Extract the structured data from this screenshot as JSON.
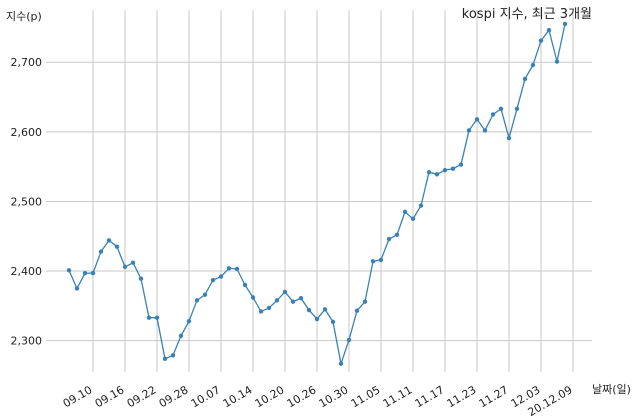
{
  "chart_data": {
    "type": "line",
    "title": "kospi 지수, 최근 3개월",
    "ylabel": "지수(p)",
    "xlabel": "날짜(일)",
    "ylim": [
      2255,
      2775
    ],
    "yticks": [
      2300,
      2400,
      2500,
      2600,
      2700
    ],
    "ytick_labels": [
      "2,300",
      "2,400",
      "2,500",
      "2,600",
      "2,700"
    ],
    "xtick_labels": [
      "09.10",
      "09.16",
      "09.22",
      "09.28",
      "10.07",
      "10.14",
      "10.20",
      "10.26",
      "10.30",
      "11.05",
      "11.11",
      "11.17",
      "11.23",
      "11.27",
      "12.03",
      "20.12.09"
    ],
    "xtick_index": [
      3,
      7,
      11,
      15,
      19,
      23,
      27,
      31,
      35,
      39,
      43,
      47,
      51,
      55,
      59,
      63
    ],
    "grid": true,
    "color": "#3a82b5",
    "series": [
      {
        "values": [
          2401,
          2375,
          2397,
          2397,
          2428,
          2444,
          2435,
          2406,
          2412,
          2389,
          2333,
          2333,
          2274,
          2279,
          2307,
          2328,
          2358,
          2366,
          2387,
          2392,
          2404,
          2403,
          2380,
          2362,
          2342,
          2347,
          2358,
          2370,
          2356,
          2361,
          2344,
          2331,
          2345,
          2327,
          2267,
          2301,
          2343,
          2356,
          2414,
          2416,
          2446,
          2452,
          2485,
          2475,
          2494,
          2542,
          2539,
          2545,
          2547,
          2553,
          2602,
          2618,
          2602,
          2625,
          2633,
          2591,
          2633,
          2676,
          2696,
          2731,
          2746,
          2701,
          2755
        ]
      }
    ]
  }
}
